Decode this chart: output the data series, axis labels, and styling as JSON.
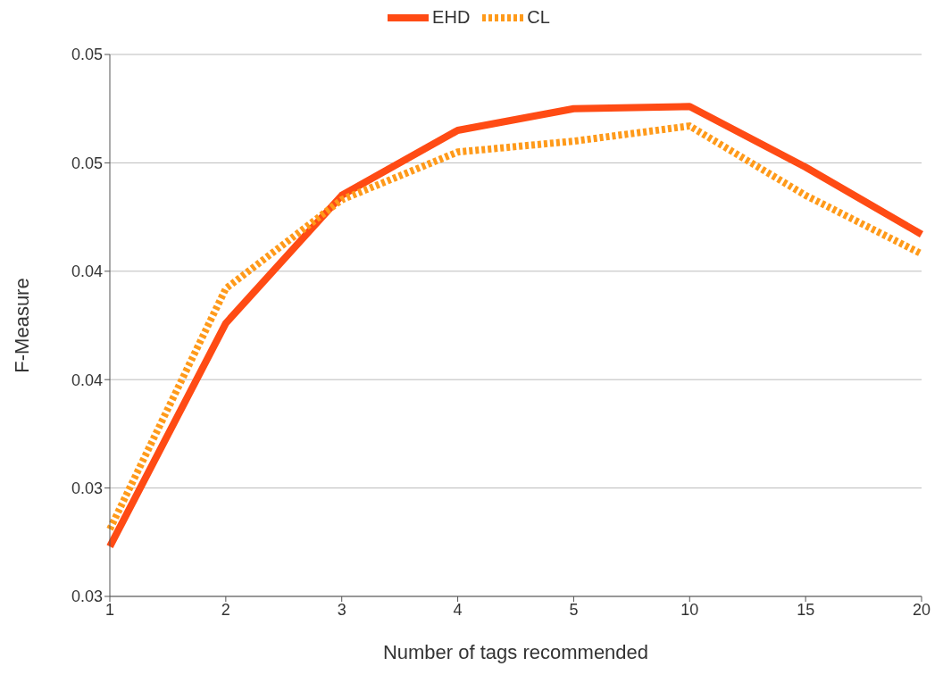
{
  "chart_data": {
    "type": "line",
    "xlabel": "Number of tags recommended",
    "ylabel": "F-Measure",
    "categories": [
      "1",
      "2",
      "3",
      "4",
      "5",
      "10",
      "15",
      "20"
    ],
    "series": [
      {
        "name": "EHD",
        "color": "#ff4b14",
        "line_style": "solid",
        "values": [
          0.0273,
          0.0376,
          0.0435,
          0.0465,
          0.0475,
          0.0476,
          0.0448,
          0.0417
        ]
      },
      {
        "name": "CL",
        "color": "#ff9a1a",
        "line_style": "dotted",
        "values": [
          0.0281,
          0.0392,
          0.0433,
          0.0455,
          0.046,
          0.0467,
          0.0435,
          0.0408
        ]
      }
    ],
    "ylim": [
      0.025,
      0.05
    ],
    "yticks": [
      {
        "value": 0.025,
        "label": "0.03"
      },
      {
        "value": 0.03,
        "label": "0.03"
      },
      {
        "value": 0.035,
        "label": "0.04"
      },
      {
        "value": 0.04,
        "label": "0.04"
      },
      {
        "value": 0.045,
        "label": "0.05"
      },
      {
        "value": 0.05,
        "label": "0.05"
      }
    ],
    "grid": "y",
    "legend": "top",
    "marker": "none"
  }
}
